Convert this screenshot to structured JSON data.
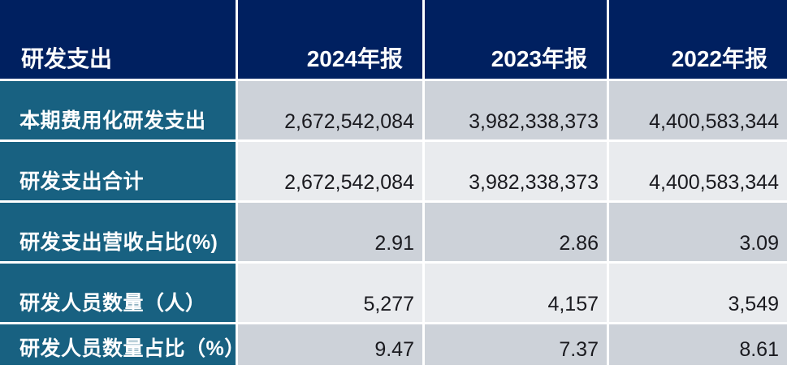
{
  "table": {
    "title": "研发支出",
    "columns": [
      "2024年报",
      "2023年报",
      "2022年报"
    ],
    "rows": [
      {
        "label": "本期费用化研发支出",
        "values": [
          "2,672,542,084",
          "3,982,338,373",
          "4,400,583,344"
        ]
      },
      {
        "label": "研发支出合计",
        "values": [
          "2,672,542,084",
          "3,982,338,373",
          "4,400,583,344"
        ]
      },
      {
        "label": "研发支出营收占比(%)",
        "values": [
          "2.91",
          "2.86",
          "3.09"
        ]
      },
      {
        "label": "研发人员数量（人）",
        "values": [
          "5,277",
          "4,157",
          "3,549"
        ]
      },
      {
        "label": "研发人员数量占比（%）",
        "values": [
          "9.47",
          "7.37",
          "8.61"
        ]
      }
    ],
    "colors": {
      "header_bg": "#002060",
      "label_column_bg": "#186181",
      "row_dark_bg": "#cdd2d9",
      "row_light_bg": "#e9ebee",
      "header_text": "#ffffff",
      "value_text": "#1a1a1f",
      "grid_gap": "#ffffff"
    }
  }
}
